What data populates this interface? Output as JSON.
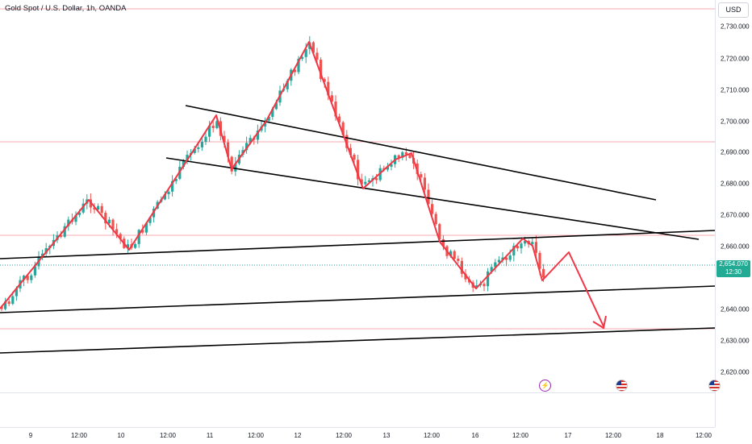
{
  "header": {
    "title": "Gold Spot / U.S. Dollar, 1h, OANDA"
  },
  "price_axis": {
    "currency": "USD",
    "ticks": [
      "2,730.000",
      "2,720.000",
      "2,710.000",
      "2,700.000",
      "2,690.000",
      "2,680.000",
      "2,670.000",
      "2,660.000",
      "2,640.000",
      "2,630.000",
      "2,620.000"
    ],
    "current_price": "2,654.070",
    "countdown": "12:30"
  },
  "time_axis": {
    "ticks": [
      "9",
      "12:00",
      "10",
      "12:00",
      "11",
      "12:00",
      "12",
      "12:00",
      "13",
      "12:00",
      "16",
      "12:00",
      "17",
      "12:00",
      "18",
      "12:00"
    ]
  },
  "colors": {
    "bull": "#26a69a",
    "bear": "#ef5350",
    "drawing": "#f23645",
    "trendline": "#000000",
    "level": "#f7a9b1",
    "current_line": "#26a69a"
  },
  "events": [
    {
      "icon": "lightning-icon",
      "glyph": "⚡"
    },
    {
      "icon": "us-flag-icon"
    },
    {
      "icon": "us-flag-icon"
    }
  ]
}
